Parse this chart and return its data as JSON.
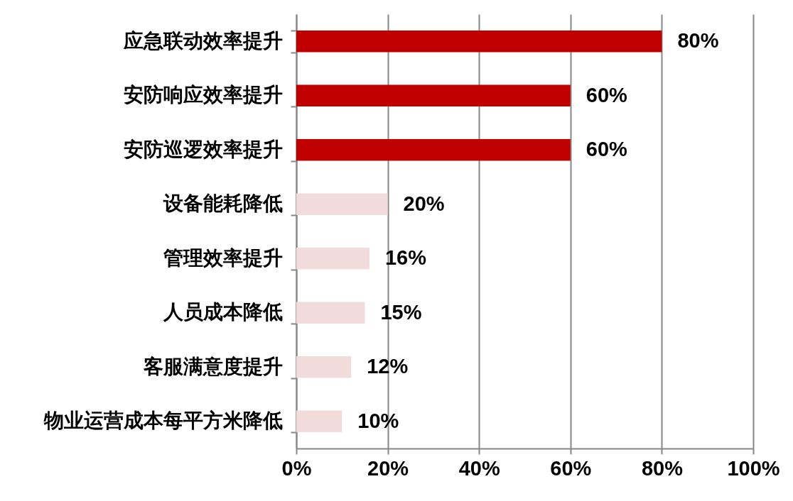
{
  "chart_data": {
    "type": "bar",
    "orientation": "horizontal",
    "categories": [
      "应急联动效率提升",
      "安防响应效率提升",
      "安防巡逻效率提升",
      "设备能耗降低",
      "管理效率提升",
      "人员成本降低",
      "客服满意度提升",
      "物业运营成本每平方米降低"
    ],
    "values": [
      80,
      60,
      60,
      20,
      16,
      15,
      12,
      10
    ],
    "colors": [
      "#c00000",
      "#c00000",
      "#c00000",
      "#f2dcdb",
      "#f2dcdb",
      "#f2dcdb",
      "#f2dcdb",
      "#f2dcdb"
    ],
    "value_labels": [
      "80%",
      "60%",
      "60%",
      "20%",
      "16%",
      "15%",
      "12%",
      "10%"
    ],
    "xlim": [
      0,
      100
    ],
    "xticks": [
      {
        "value": 0,
        "label": "0%"
      },
      {
        "value": 20,
        "label": "20%"
      },
      {
        "value": 40,
        "label": "40%"
      },
      {
        "value": 60,
        "label": "60%"
      },
      {
        "value": 80,
        "label": "80%"
      },
      {
        "value": 100,
        "label": "100%"
      }
    ],
    "grid": "x"
  }
}
